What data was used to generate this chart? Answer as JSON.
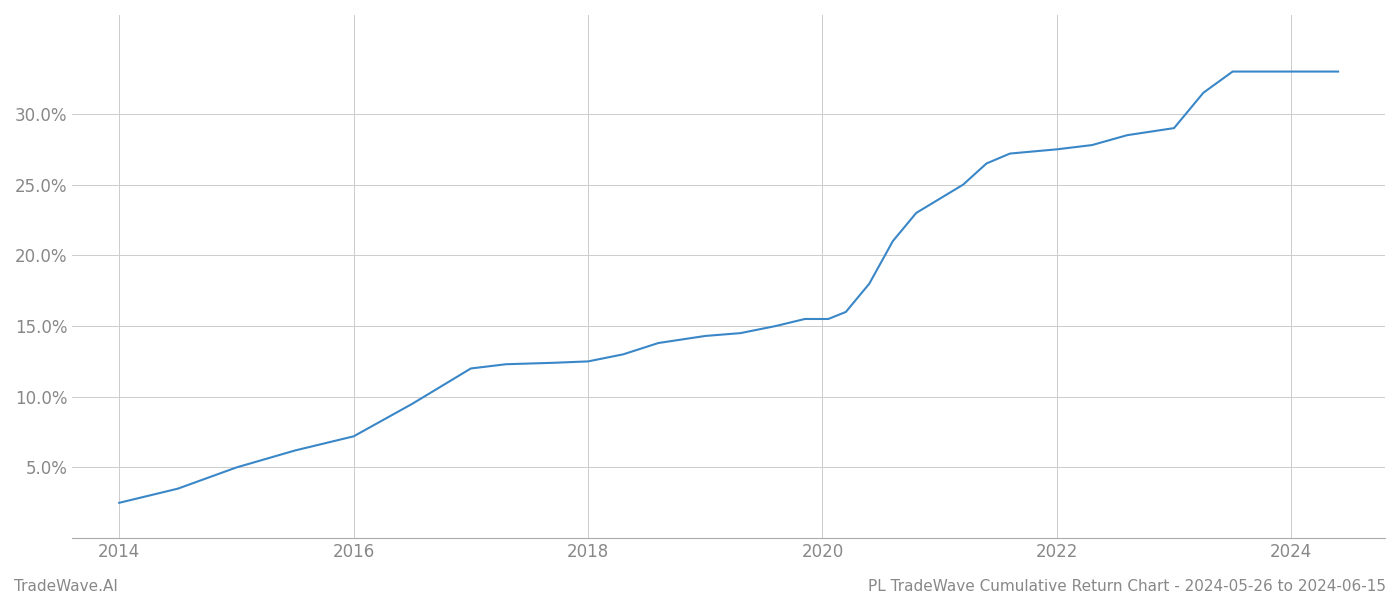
{
  "title": "PL TradeWave Cumulative Return Chart - 2024-05-26 to 2024-06-15",
  "watermark": "TradeWave.AI",
  "line_color": "#3a87c8",
  "background_color": "#ffffff",
  "grid_color": "#cccccc",
  "x_years": [
    2014.0,
    2014.5,
    2015.0,
    2015.5,
    2016.0,
    2016.5,
    2017.0,
    2017.3,
    2017.7,
    2018.0,
    2018.3,
    2018.6,
    2019.0,
    2019.3,
    2019.6,
    2019.85,
    2020.05,
    2020.2,
    2020.4,
    2020.6,
    2020.8,
    2021.0,
    2021.2,
    2021.4,
    2021.6,
    2022.0,
    2022.3,
    2022.6,
    2023.0,
    2023.25,
    2023.5,
    2023.75,
    2024.0,
    2024.4
  ],
  "y_values": [
    2.5,
    3.5,
    5.0,
    6.2,
    7.2,
    9.5,
    12.0,
    12.3,
    12.4,
    12.5,
    13.0,
    13.8,
    14.3,
    14.5,
    15.0,
    15.5,
    15.5,
    16.0,
    18.0,
    21.0,
    23.0,
    24.0,
    25.0,
    26.5,
    27.2,
    27.5,
    27.8,
    28.5,
    29.0,
    31.5,
    33.0,
    33.0,
    33.0,
    33.0
  ],
  "xlim": [
    2013.6,
    2024.8
  ],
  "ylim": [
    0,
    37
  ],
  "yticks": [
    5.0,
    10.0,
    15.0,
    20.0,
    25.0,
    30.0
  ],
  "xticks": [
    2014,
    2016,
    2018,
    2020,
    2022,
    2024
  ],
  "tick_label_color": "#888888",
  "title_fontsize": 11,
  "watermark_fontsize": 11,
  "line_width": 1.5
}
